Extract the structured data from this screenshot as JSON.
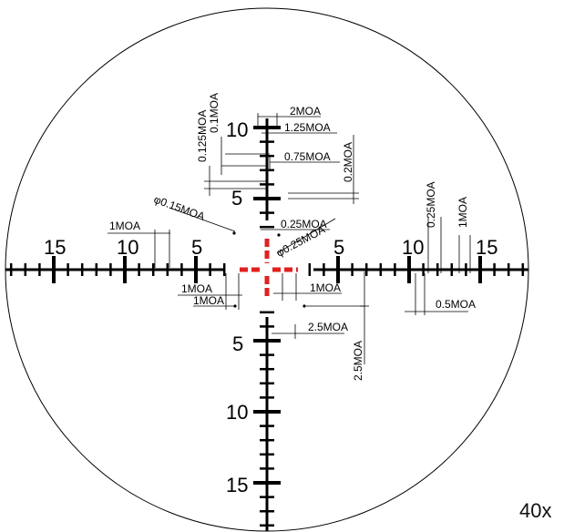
{
  "reticle": {
    "magnification": "40x",
    "colors": {
      "reticle": "#000000",
      "center_dot": "#e02020",
      "background": "#ffffff"
    },
    "horizontal_labels": {
      "left": [
        "15",
        "10",
        "5"
      ],
      "right": [
        "5",
        "10",
        "15"
      ]
    },
    "vertical_labels": {
      "up": [
        "10",
        "5"
      ],
      "down": [
        "5",
        "10",
        "15"
      ]
    },
    "dimensions": {
      "2moa": "2MOA",
      "1_25moa": "1.25MOA",
      "0_75moa": "0.75MOA",
      "0_125moa": "0.125MOA",
      "0_1moa": "0.1MOA",
      "0_2moa": "0.2MOA",
      "dot_0_15": "φ0.15MOA",
      "dot_0_25": "φ0.25MOA",
      "0_25moa_center": "0.25MOA",
      "1moa_left_top": "1MOA",
      "1moa_left_mid": "1MOA",
      "1moa_left_bottom": "1MOA",
      "1moa_right_mid": "1MOA",
      "2_5moa_h": "2.5MOA",
      "2_5moa_v": "2.5MOA",
      "0_25moa_right": "0.25MOA",
      "1moa_right_top": "1MOA",
      "0_5moa": "0.5MOA"
    }
  }
}
